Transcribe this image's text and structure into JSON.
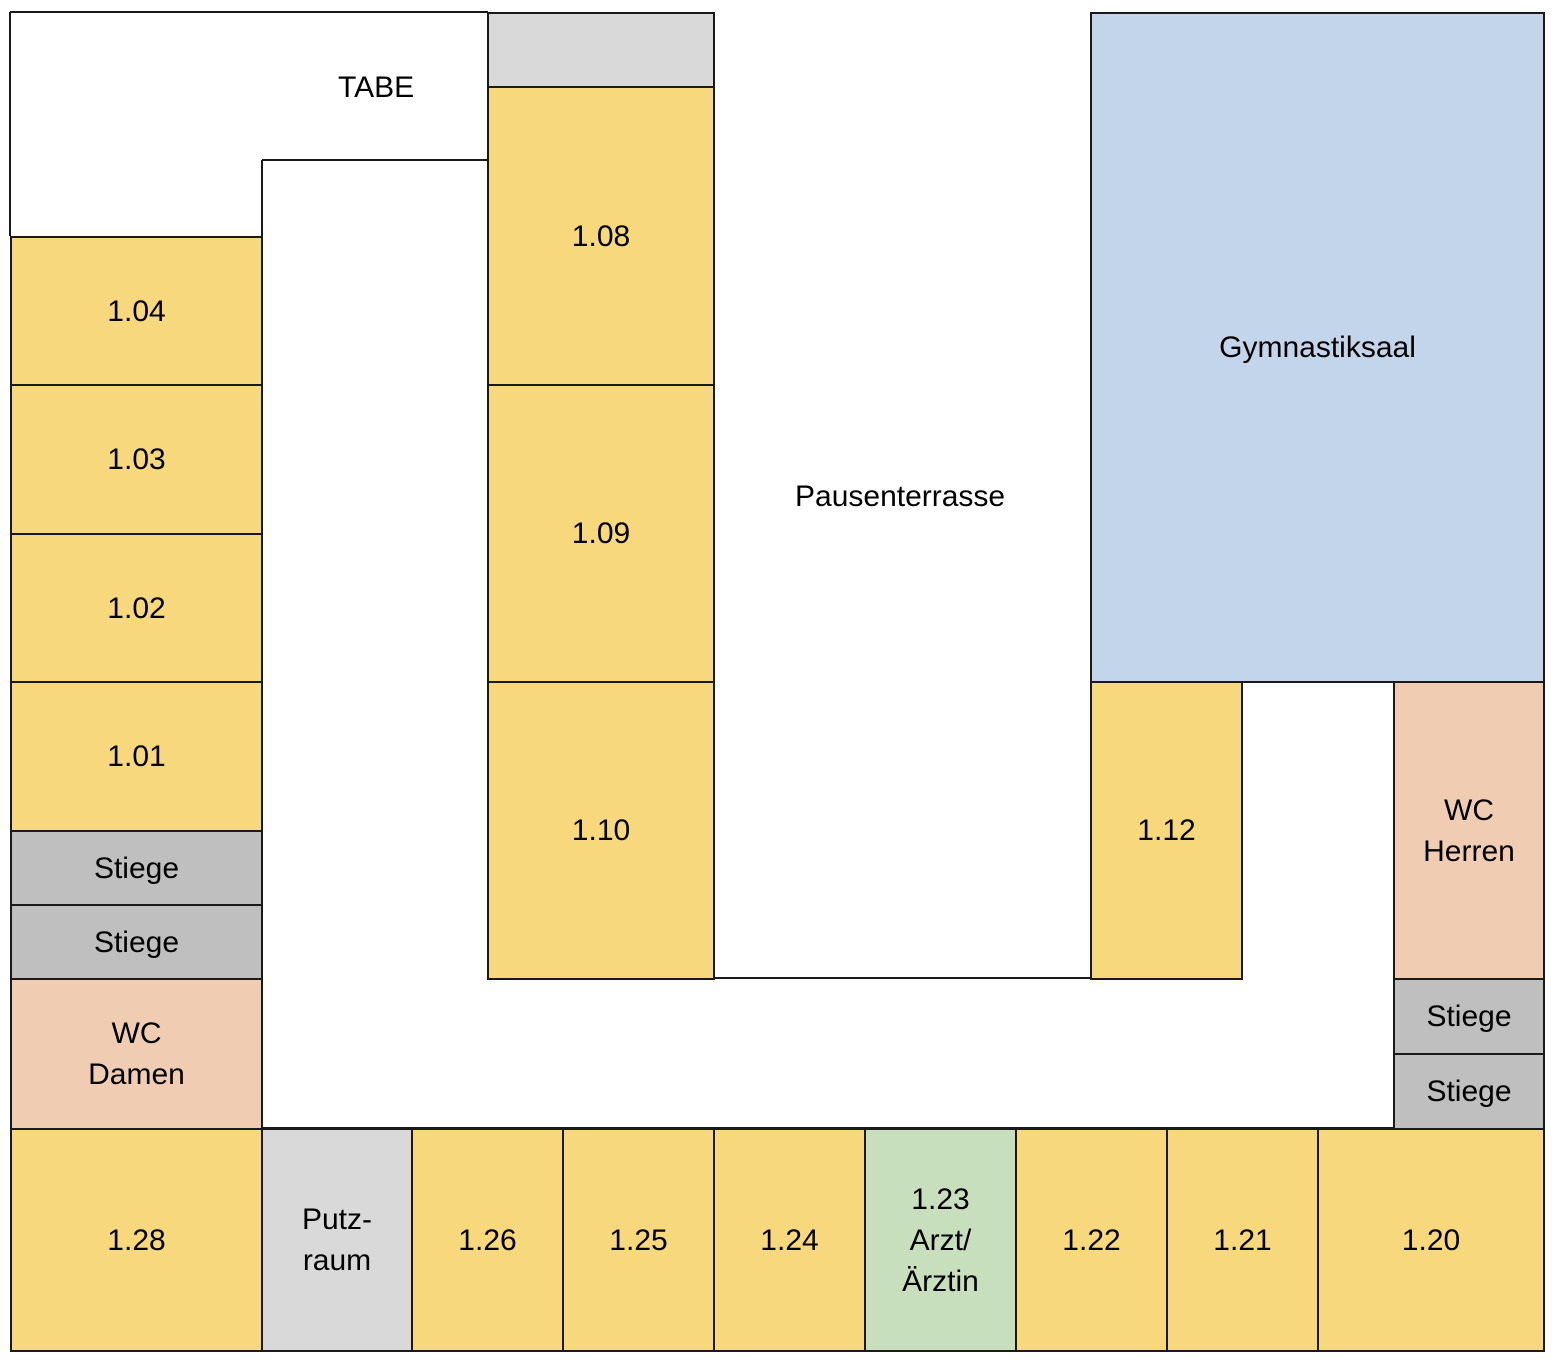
{
  "title": "",
  "colors": {
    "classroom": "#F7D87C",
    "stairs": "#BFBFBF",
    "storage": "#D9D9D9",
    "wc": "#F0CDB2",
    "gym": "#C3D5EA",
    "doctor": "#C8DFBE",
    "outline": "#1a1a1a"
  },
  "areas": {
    "tabe": "TABE",
    "pausenterrasse": "Pausenterrasse"
  },
  "rooms": {
    "r104": "1.04",
    "r103": "1.03",
    "r102": "1.02",
    "r101": "1.01",
    "stiege_left_1": "Stiege",
    "stiege_left_2": "Stiege",
    "wc_damen": "WC\nDamen",
    "r108": "1.08",
    "r109": "1.09",
    "r110": "1.10",
    "gymnastiksaal": "Gymnastiksaal",
    "r112": "1.12",
    "wc_herren": "WC\nHerren",
    "stiege_right_1": "Stiege",
    "stiege_right_2": "Stiege",
    "r128": "1.28",
    "putzraum": "Putz-\nraum",
    "r126": "1.26",
    "r125": "1.25",
    "r124": "1.24",
    "r123": "1.23\nArzt/\nÄrztin",
    "r122": "1.22",
    "r121": "1.21",
    "r120": "1.20"
  }
}
